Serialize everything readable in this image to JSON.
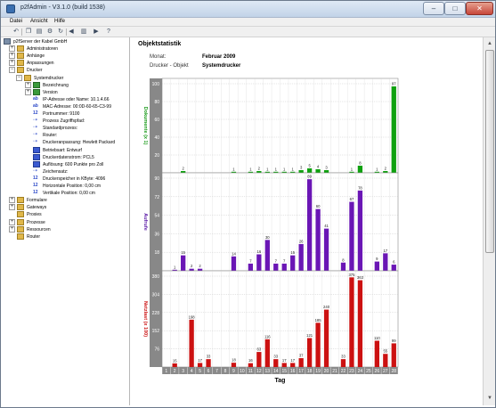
{
  "window": {
    "title": "p2fAdmin - V3.1.0 (build 1538)",
    "minimize": "–",
    "maximize": "□",
    "close": "✕"
  },
  "menu": [
    "Datei",
    "Ansicht",
    "Hilfe"
  ],
  "toolbar": [
    {
      "icon": "undo-icon",
      "glyph": "↶"
    },
    {
      "icon": "copy-icon",
      "glyph": "❐"
    },
    {
      "icon": "properties-icon",
      "glyph": "▤"
    },
    {
      "icon": "settings-icon",
      "glyph": "⚙"
    },
    {
      "icon": "refresh-icon",
      "glyph": "↻"
    },
    {
      "icon": "back-icon",
      "glyph": "◀"
    },
    {
      "icon": "chart-icon",
      "glyph": "▥"
    },
    {
      "icon": "forward-icon",
      "glyph": "▶"
    },
    {
      "icon": "help-icon",
      "glyph": "?"
    }
  ],
  "tree": [
    {
      "label": "p2fServer der Kabel GmbH",
      "icon": "server",
      "level": 0,
      "expander": ""
    },
    {
      "label": "Administratoren",
      "icon": "folder",
      "level": 1,
      "expander": "+"
    },
    {
      "label": "Anhänge",
      "icon": "folder",
      "level": 1,
      "expander": "+"
    },
    {
      "label": "Anpassungen",
      "icon": "folder",
      "level": 1,
      "expander": "+"
    },
    {
      "label": "Drucker",
      "icon": "folder",
      "level": 1,
      "expander": "−"
    },
    {
      "label": "Systemdrucker",
      "icon": "folder",
      "level": 2,
      "expander": "−"
    },
    {
      "label": "Bezeichnung",
      "icon": "green",
      "level": 3,
      "expander": "+"
    },
    {
      "label": "Version",
      "icon": "green",
      "level": 3,
      "expander": "+"
    },
    {
      "label": "IP-Adresse oder Name:   10.1.4.66",
      "icon": "ab",
      "level": 3,
      "expander": ""
    },
    {
      "label": "MAC-Adresse:   00:0D-60-65-C3-99",
      "icon": "ab",
      "level": 3,
      "expander": ""
    },
    {
      "label": "Portnummer:   9100",
      "icon": "num",
      "level": 3,
      "expander": ""
    },
    {
      "label": "Prozess Zugriffspfad:",
      "icon": "link",
      "level": 3,
      "expander": ""
    },
    {
      "label": "Standardprozess:",
      "icon": "link",
      "level": 3,
      "expander": ""
    },
    {
      "label": "Router:",
      "icon": "link",
      "level": 3,
      "expander": ""
    },
    {
      "label": "Druckeranpassung:   Hewlett Packard",
      "icon": "link",
      "level": 3,
      "expander": ""
    },
    {
      "label": "Betriebsart:   Entwurf",
      "icon": "blue",
      "level": 3,
      "expander": ""
    },
    {
      "label": "Druckerdatenstrom:   PCL5",
      "icon": "blue",
      "level": 3,
      "expander": ""
    },
    {
      "label": "Auflösung:   600 Punkte pro Zoll",
      "icon": "blue",
      "level": 3,
      "expander": ""
    },
    {
      "label": "Zeichensatz:",
      "icon": "link",
      "level": 3,
      "expander": ""
    },
    {
      "label": "Druckerspeicher in KByte:   4096",
      "icon": "num",
      "level": 3,
      "expander": ""
    },
    {
      "label": "Horizontale Position:   0,00 cm",
      "icon": "num",
      "level": 3,
      "expander": ""
    },
    {
      "label": "Vertikale Position:   0,00 cm",
      "icon": "num",
      "level": 3,
      "expander": ""
    },
    {
      "label": "Formulare",
      "icon": "folder",
      "level": 1,
      "expander": "+"
    },
    {
      "label": "Gateways",
      "icon": "folder",
      "level": 1,
      "expander": "+"
    },
    {
      "label": "Proxies",
      "icon": "folder",
      "level": 1,
      "expander": ""
    },
    {
      "label": "Prozesse",
      "icon": "folder",
      "level": 1,
      "expander": "+"
    },
    {
      "label": "Ressourcen",
      "icon": "folder",
      "level": 1,
      "expander": "+"
    },
    {
      "label": "Router",
      "icon": "folder",
      "level": 1,
      "expander": ""
    }
  ],
  "main": {
    "title": "Objektstatistik",
    "month_label": "Monat:",
    "month_value": "Februar 2009",
    "object_label": "Drucker - Objekt",
    "object_value": "Systemdrucker"
  },
  "chart_data": {
    "type": "bar",
    "x_title": "Tag",
    "days": [
      "1",
      "2",
      "3",
      "4",
      "5",
      "6",
      "7",
      "8",
      "9",
      "10",
      "11",
      "12",
      "13",
      "14",
      "15",
      "16",
      "17",
      "18",
      "19",
      "20",
      "21",
      "22",
      "23",
      "24",
      "25",
      "26",
      "27",
      "28"
    ],
    "panels": [
      {
        "label": "Dokumente (x 1)",
        "color": "#0fa10f",
        "label_color": "#1a9a1a",
        "ylim": [
          0,
          100
        ],
        "yticks": [
          20,
          40,
          60,
          80,
          100
        ],
        "values": [
          0,
          0,
          2,
          0,
          0,
          0,
          0,
          0,
          1,
          0,
          1,
          2,
          1,
          1,
          1,
          1,
          3,
          5,
          4,
          3,
          0,
          0,
          1,
          8,
          0,
          1,
          2,
          97
        ]
      },
      {
        "label": "Aufrufe",
        "color": "#6a16b5",
        "label_color": "#5b1aa6",
        "ylim": [
          0,
          90
        ],
        "yticks": [
          18,
          36,
          54,
          72,
          90
        ],
        "values": [
          0,
          1,
          15,
          2,
          2,
          0,
          0,
          0,
          14,
          0,
          7,
          16,
          30,
          7,
          7,
          15,
          26,
          89,
          60,
          41,
          0,
          8,
          67,
          78,
          0,
          9,
          17,
          6
        ]
      },
      {
        "label": "Netzlast (x 100)",
        "color": "#cc1111",
        "label_color": "#cc1111",
        "ylim": [
          0,
          380
        ],
        "yticks": [
          76,
          152,
          228,
          304,
          380
        ],
        "values": [
          0,
          15,
          0,
          198,
          17,
          33,
          0,
          0,
          18,
          0,
          16,
          63,
          116,
          33,
          17,
          17,
          37,
          121,
          185,
          240,
          0,
          33,
          375,
          363,
          0,
          110,
          55,
          99
        ]
      }
    ]
  }
}
